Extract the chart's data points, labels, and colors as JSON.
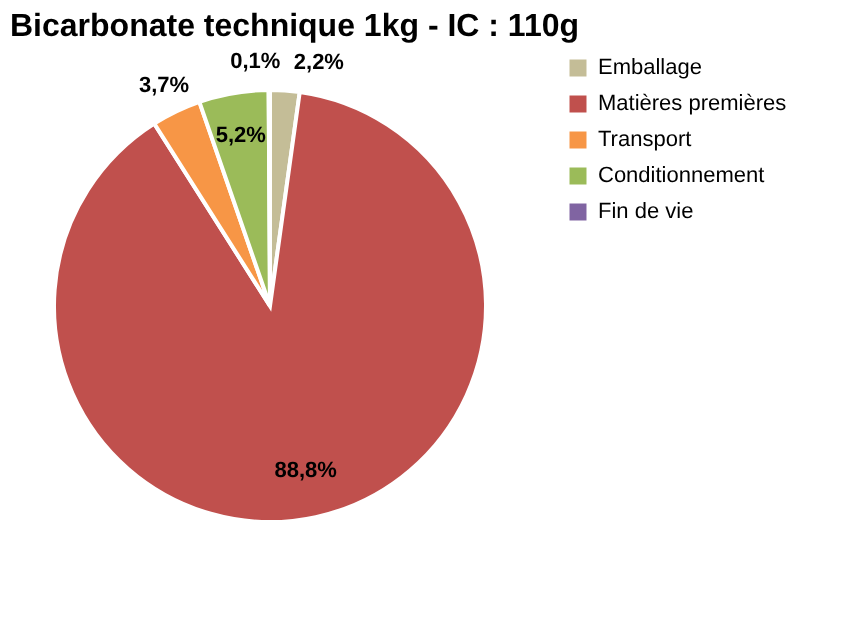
{
  "chart_data": {
    "type": "pie",
    "title": "Bicarbonate technique 1kg - IC : 110g",
    "categories": [
      "Emballage",
      "Matières premières",
      "Transport",
      "Conditionnement",
      "Fin de vie"
    ],
    "values": [
      2.2,
      88.8,
      3.7,
      5.2,
      0.1
    ],
    "colors": [
      "#c4bd97",
      "#c0504d",
      "#f79646",
      "#9bbb59",
      "#8064a2"
    ],
    "value_labels": [
      "2,2%",
      "88,8%",
      "3,7%",
      "5,2%",
      "0,1%"
    ],
    "legend": "right"
  }
}
